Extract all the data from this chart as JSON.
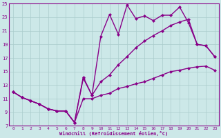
{
  "xlabel": "Windchill (Refroidissement éolien,°C)",
  "bg_color": "#cce8e8",
  "line_color": "#880088",
  "grid_color": "#aacccc",
  "xlim": [
    -0.5,
    23.5
  ],
  "ylim": [
    7,
    25
  ],
  "xticks": [
    0,
    1,
    2,
    3,
    4,
    5,
    6,
    7,
    8,
    9,
    10,
    11,
    12,
    13,
    14,
    15,
    16,
    17,
    18,
    19,
    20,
    21,
    22,
    23
  ],
  "yticks": [
    7,
    9,
    11,
    13,
    15,
    17,
    19,
    21,
    23,
    25
  ],
  "line1_x": [
    0,
    1,
    2,
    3,
    4,
    5,
    6,
    7,
    8,
    9,
    10,
    11,
    12,
    13,
    14,
    15,
    16,
    17,
    18,
    19,
    20,
    21,
    22,
    23
  ],
  "line1_y": [
    12.0,
    11.2,
    10.7,
    10.2,
    9.5,
    9.2,
    9.2,
    7.5,
    11.0,
    11.0,
    11.5,
    11.8,
    12.5,
    12.8,
    13.2,
    13.5,
    14.0,
    14.5,
    15.0,
    15.2,
    15.5,
    15.7,
    15.8,
    15.2
  ],
  "line2_x": [
    0,
    1,
    2,
    3,
    4,
    5,
    6,
    7,
    8,
    9,
    10,
    11,
    12,
    13,
    14,
    15,
    16,
    17,
    18,
    19,
    20,
    21,
    22,
    23
  ],
  "line2_y": [
    12.0,
    11.2,
    10.7,
    10.2,
    9.5,
    9.2,
    9.2,
    7.5,
    14.0,
    11.5,
    13.5,
    14.5,
    16.0,
    17.2,
    18.5,
    19.5,
    20.3,
    21.0,
    21.8,
    22.3,
    22.7,
    19.0,
    18.8,
    17.2
  ],
  "line3_x": [
    0,
    1,
    2,
    3,
    4,
    5,
    6,
    7,
    8,
    9,
    10,
    11,
    12,
    13,
    14,
    15,
    16,
    17,
    18,
    19,
    20,
    21,
    22,
    23
  ],
  "line3_y": [
    12.0,
    11.2,
    10.7,
    10.2,
    9.5,
    9.2,
    9.2,
    7.5,
    14.2,
    11.5,
    20.2,
    23.4,
    20.5,
    24.8,
    22.8,
    23.2,
    22.5,
    23.3,
    23.3,
    24.5,
    22.2,
    19.0,
    18.8,
    17.2
  ],
  "marker": "D",
  "markersize": 2.5,
  "linewidth": 1.0
}
